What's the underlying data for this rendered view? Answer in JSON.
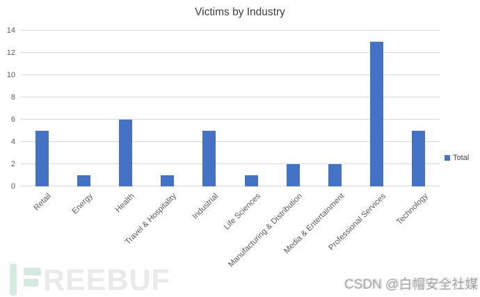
{
  "title": "Victims by Industry",
  "legend": {
    "label": "Total"
  },
  "colors": {
    "bar": "#4472c4",
    "gridline": "#d9d9d9",
    "axis_text": "#595959",
    "title_text": "#3d3d3d",
    "freebuf_accent": "#d6ebdf",
    "freebuf_gray": "#eaeaea"
  },
  "chart_data": {
    "type": "bar",
    "title": "Victims by Industry",
    "categories": [
      "Retail",
      "Energy",
      "Health",
      "Travel & Hospitality",
      "Industrial",
      "Life Sciences",
      "Manufacturing & Distribution",
      "Media & Entertainment",
      "Professional Services",
      "Technology"
    ],
    "series": [
      {
        "name": "Total",
        "values": [
          5,
          1,
          6,
          1,
          5,
          1,
          2,
          2,
          13,
          5
        ]
      }
    ],
    "xlabel": "",
    "ylabel": "",
    "ylim": [
      0,
      14
    ],
    "ytick_step": 2,
    "grid": true,
    "legend_position": "right",
    "x_label_rotation_deg": 45
  },
  "watermarks": {
    "freebuf": {
      "brand": "FREEBUF",
      "gray_text": "REEBUF"
    },
    "csdn": {
      "text": "CSDN @白帽安全社媒"
    }
  }
}
